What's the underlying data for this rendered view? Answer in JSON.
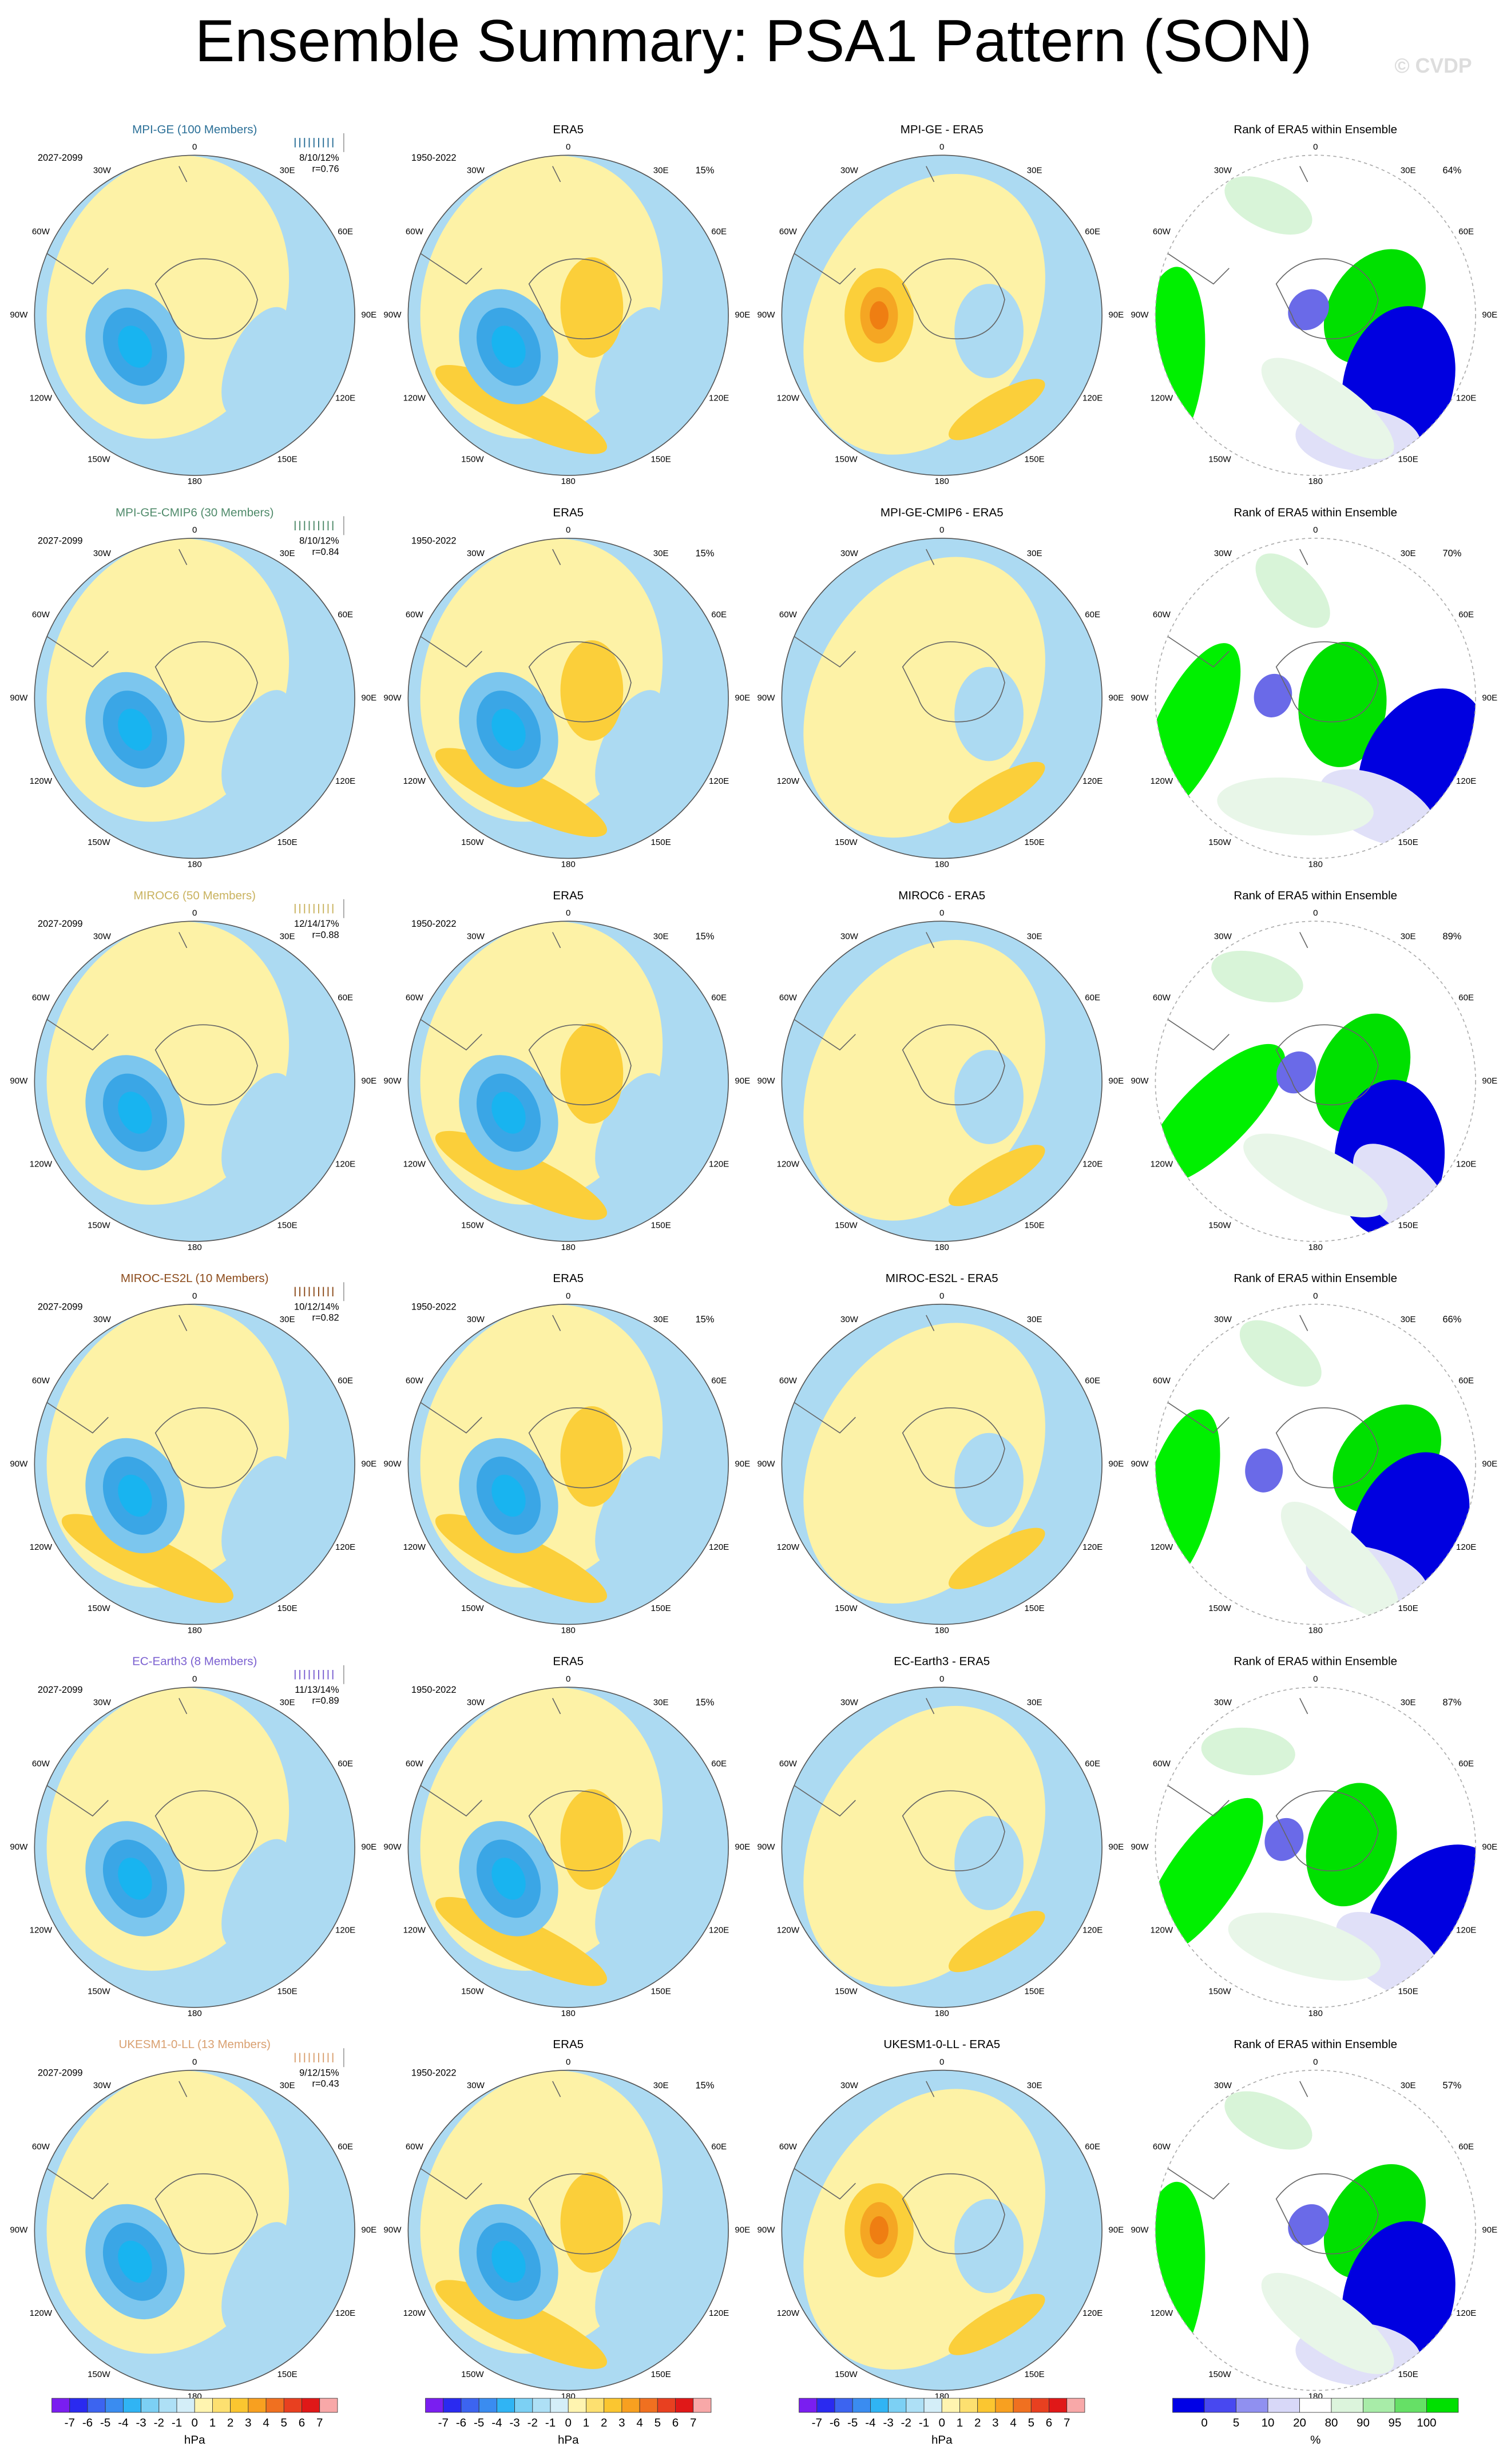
{
  "title": "Ensemble Summary: PSA1 Pattern (SON)",
  "credit": "© CVDP",
  "longitude_labels": [
    "0",
    "30E",
    "60E",
    "90E",
    "120E",
    "150E",
    "180",
    "150W",
    "120W",
    "90W",
    "60W",
    "30W"
  ],
  "rows": [
    {
      "model": "MPI-GE (100 Members)",
      "model_color": "#2a6f97",
      "model_period": "2027-2099",
      "stats": "8/10/12%",
      "r": "r=0.76",
      "obs": "ERA5",
      "obs_period": "1950-2022",
      "obs_pct": "15%",
      "diff": "MPI-GE - ERA5",
      "rank": "Rank of ERA5 within Ensemble",
      "rank_pct": "64%"
    },
    {
      "model": "MPI-GE-CMIP6 (30 Members)",
      "model_color": "#4f8a6a",
      "model_period": "2027-2099",
      "stats": "8/10/12%",
      "r": "r=0.84",
      "obs": "ERA5",
      "obs_period": "1950-2022",
      "obs_pct": "15%",
      "diff": "MPI-GE-CMIP6 - ERA5",
      "rank": "Rank of ERA5 within Ensemble",
      "rank_pct": "70%"
    },
    {
      "model": "MIROC6 (50 Members)",
      "model_color": "#c9b25e",
      "model_period": "2027-2099",
      "stats": "12/14/17%",
      "r": "r=0.88",
      "obs": "ERA5",
      "obs_period": "1950-2022",
      "obs_pct": "15%",
      "diff": "MIROC6 - ERA5",
      "rank": "Rank of ERA5 within Ensemble",
      "rank_pct": "89%"
    },
    {
      "model": "MIROC-ES2L (10 Members)",
      "model_color": "#8b4a1a",
      "model_period": "2027-2099",
      "stats": "10/12/14%",
      "r": "r=0.82",
      "obs": "ERA5",
      "obs_period": "1950-2022",
      "obs_pct": "15%",
      "diff": "MIROC-ES2L - ERA5",
      "rank": "Rank of ERA5 within Ensemble",
      "rank_pct": "66%"
    },
    {
      "model": "EC-Earth3 (8 Members)",
      "model_color": "#7a5fd0",
      "model_period": "2027-2099",
      "stats": "11/13/14%",
      "r": "r=0.89",
      "obs": "ERA5",
      "obs_period": "1950-2022",
      "obs_pct": "15%",
      "diff": "EC-Earth3 - ERA5",
      "rank": "Rank of ERA5 within Ensemble",
      "rank_pct": "87%"
    },
    {
      "model": "UKESM1-0-LL (13 Members)",
      "model_color": "#d9a070",
      "model_period": "2027-2099",
      "stats": "9/12/15%",
      "r": "r=0.43",
      "obs": "ERA5",
      "obs_period": "1950-2022",
      "obs_pct": "15%",
      "diff": "UKESM1-0-LL - ERA5",
      "rank": "Rank of ERA5 within Ensemble",
      "rank_pct": "57%"
    }
  ],
  "colorbars": [
    {
      "labels": [
        "-7",
        "-6",
        "-5",
        "-4",
        "-3",
        "-2",
        "-1",
        "0",
        "1",
        "2",
        "3",
        "4",
        "5",
        "6",
        "7"
      ],
      "unit": "hPa"
    },
    {
      "labels": [
        "-7",
        "-6",
        "-5",
        "-4",
        "-3",
        "-2",
        "-1",
        "0",
        "1",
        "2",
        "3",
        "4",
        "5",
        "6",
        "7"
      ],
      "unit": "hPa"
    },
    {
      "labels": [
        "-7",
        "-6",
        "-5",
        "-4",
        "-3",
        "-2",
        "-1",
        "0",
        "1",
        "2",
        "3",
        "4",
        "5",
        "6",
        "7"
      ],
      "unit": "hPa"
    },
    {
      "labels": [
        "0",
        "5",
        "10",
        "20",
        "80",
        "90",
        "95",
        "100"
      ],
      "unit": "%"
    }
  ]
}
